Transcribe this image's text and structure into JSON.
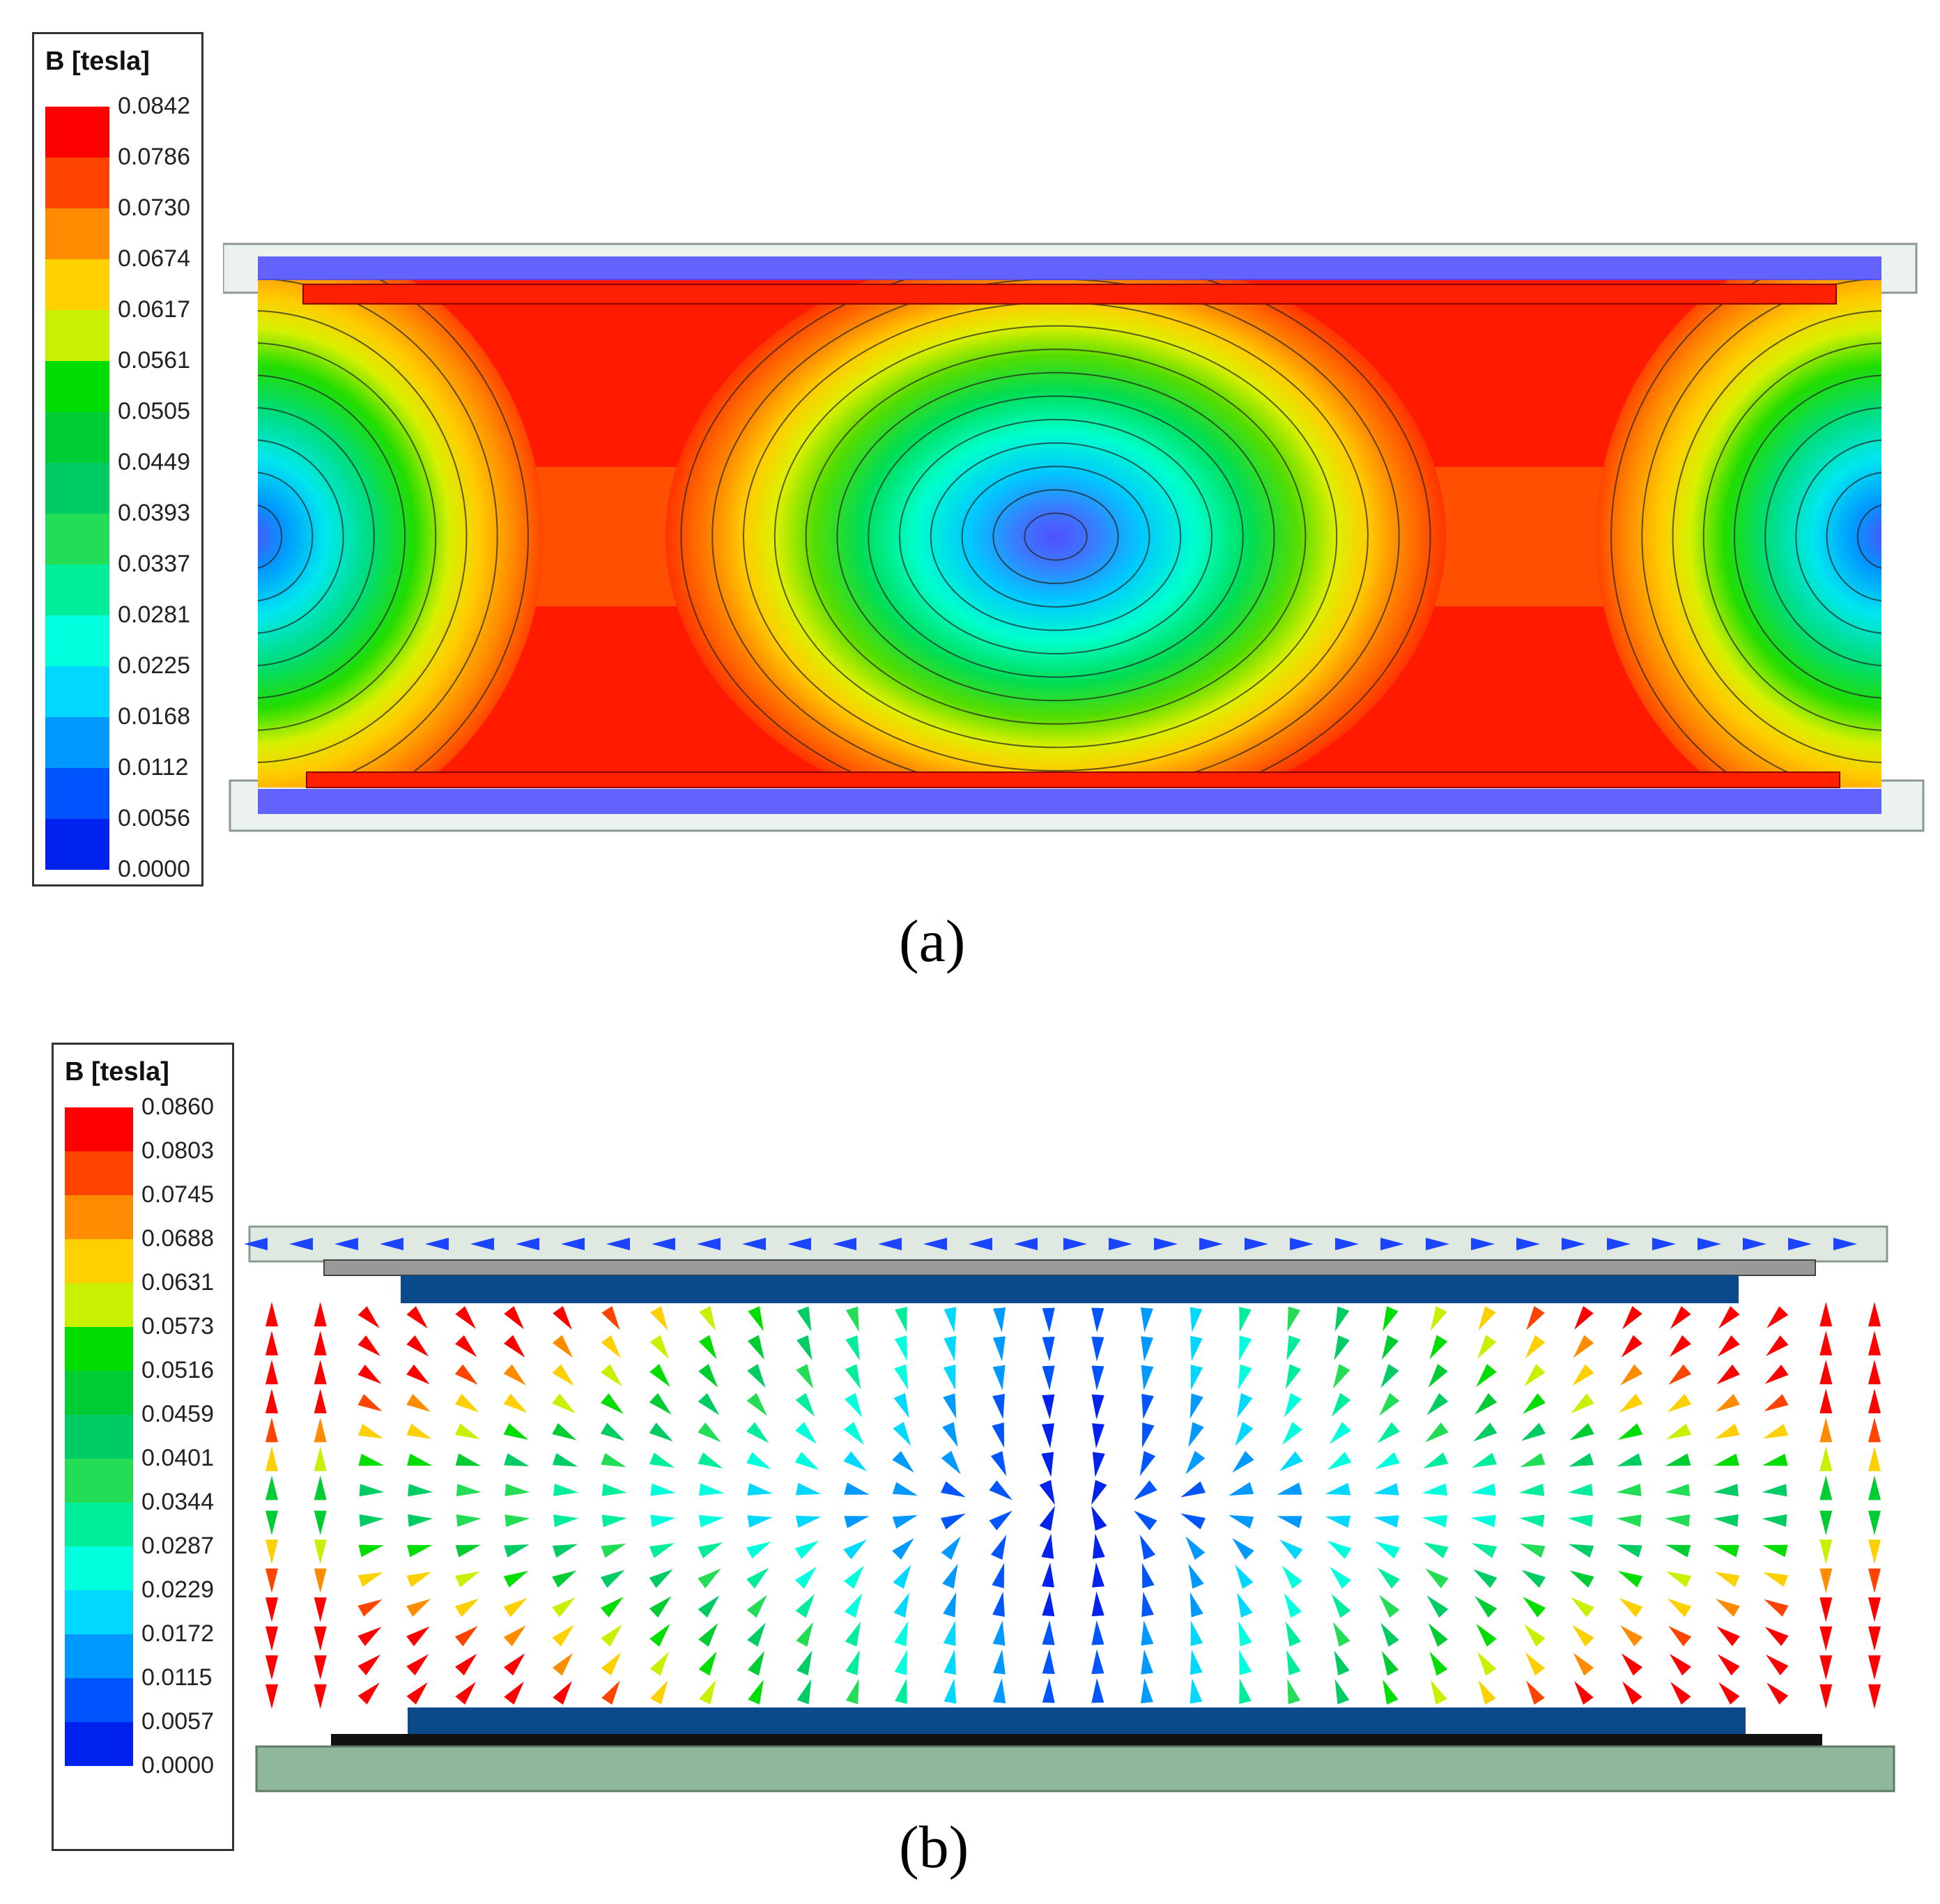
{
  "panel_a": {
    "caption": "(a)",
    "legend": {
      "title": "B [tesla]",
      "ticks": [
        "0.0842",
        "0.0786",
        "0.0730",
        "0.0674",
        "0.0617",
        "0.0561",
        "0.0505",
        "0.0449",
        "0.0393",
        "0.0337",
        "0.0281",
        "0.0225",
        "0.0168",
        "0.0112",
        "0.0056",
        "0.0000"
      ]
    }
  },
  "panel_b": {
    "caption": "(b)",
    "legend": {
      "title": "B [tesla]",
      "ticks": [
        "0.0860",
        "0.0803",
        "0.0745",
        "0.0688",
        "0.0631",
        "0.0573",
        "0.0516",
        "0.0459",
        "0.0401",
        "0.0344",
        "0.0287",
        "0.0229",
        "0.0172",
        "0.0115",
        "0.0057",
        "0.0000"
      ]
    }
  },
  "colors": {
    "scale": [
      "#ff0000",
      "#ff4400",
      "#ff8c00",
      "#ffd000",
      "#c8f000",
      "#00dd00",
      "#00cc33",
      "#00cc66",
      "#22dd55",
      "#00ee99",
      "#00ffdd",
      "#00d8ff",
      "#0099ff",
      "#0055ff",
      "#0022ee",
      "#0000ff"
    ],
    "plate_blue": "#0b4a8a",
    "rail_green": "#8fb89a"
  }
}
